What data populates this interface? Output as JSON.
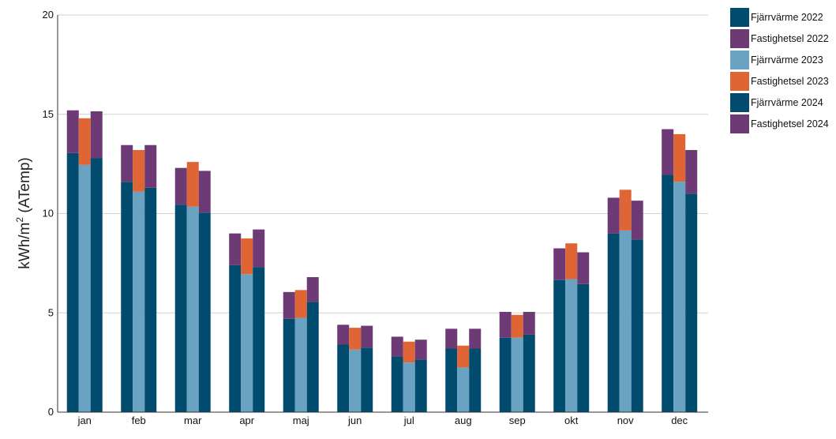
{
  "chart_data": {
    "type": "bar",
    "stacked": true,
    "categories": [
      "jan",
      "feb",
      "mar",
      "apr",
      "maj",
      "jun",
      "jul",
      "aug",
      "sep",
      "okt",
      "nov",
      "dec"
    ],
    "ylabel": {
      "prefix": "kWh/m",
      "sup": "2",
      "suffix": " (ATemp)"
    },
    "ylim": [
      0,
      20
    ],
    "yticks": [
      0,
      5,
      10,
      15,
      20
    ],
    "grid": true,
    "legend_position": "right",
    "groups": [
      {
        "year": "2022",
        "stack": [
          {
            "name": "Fjärrvärme 2022",
            "color": "#004b6e",
            "values": [
              13.05,
              11.6,
              10.45,
              7.4,
              4.7,
              3.4,
              2.8,
              3.2,
              3.75,
              6.65,
              9.0,
              11.95
            ]
          },
          {
            "name": "Fastighetsel 2022",
            "color": "#6e3a75",
            "values": [
              2.15,
              1.85,
              1.85,
              1.6,
              1.35,
              1.0,
              1.0,
              1.0,
              1.3,
              1.6,
              1.8,
              2.3
            ]
          }
        ]
      },
      {
        "year": "2023",
        "stack": [
          {
            "name": "Fjärrvärme 2023",
            "color": "#6aa3c2",
            "values": [
              12.45,
              11.1,
              10.35,
              6.95,
              4.75,
              3.15,
              2.5,
              2.25,
              3.75,
              6.7,
              9.15,
              11.6
            ]
          },
          {
            "name": "Fastighetsel 2023",
            "color": "#e06535",
            "values": [
              2.35,
              2.1,
              2.25,
              1.8,
              1.4,
              1.1,
              1.05,
              1.1,
              1.15,
              1.8,
              2.05,
              2.4
            ]
          }
        ]
      },
      {
        "year": "2024",
        "stack": [
          {
            "name": "Fjärrvärme 2024",
            "color": "#004b6e",
            "values": [
              12.8,
              11.3,
              10.05,
              7.3,
              5.55,
              3.25,
              2.65,
              3.2,
              3.9,
              6.45,
              8.7,
              11.0
            ]
          },
          {
            "name": "Fastighetsel 2024",
            "color": "#6e3a75",
            "values": [
              2.35,
              2.15,
              2.1,
              1.9,
              1.25,
              1.1,
              1.0,
              1.0,
              1.15,
              1.6,
              1.95,
              2.2
            ]
          }
        ]
      }
    ],
    "legend": [
      {
        "label": "Fjärrvärme 2022",
        "color": "#004b6e"
      },
      {
        "label": "Fastighetsel 2022",
        "color": "#6e3a75"
      },
      {
        "label": "Fjärrvärme 2023",
        "color": "#6aa3c2"
      },
      {
        "label": "Fastighetsel 2023",
        "color": "#e06535"
      },
      {
        "label": "Fjärrvärme 2024",
        "color": "#004b6e"
      },
      {
        "label": "Fastighetsel 2024",
        "color": "#6e3a75"
      }
    ]
  }
}
